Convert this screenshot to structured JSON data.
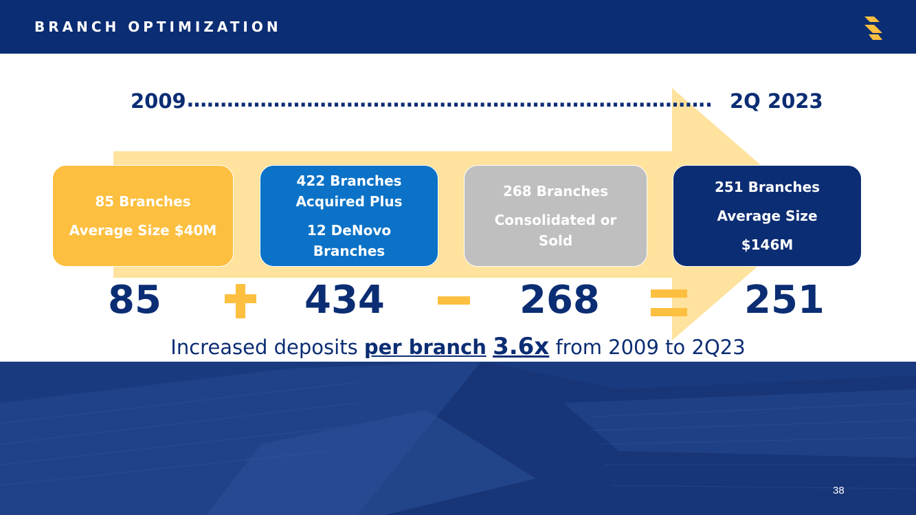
{
  "header": {
    "title": "BRANCH OPTIMIZATION"
  },
  "timeline": {
    "start": "2009",
    "dots": "…………………………………………………………………….",
    "end": "2Q 2023"
  },
  "boxes": [
    {
      "line1": "85 Branches",
      "line2": "Average Size $40M",
      "color": "#fdbf3f"
    },
    {
      "line1": "422 Branches Acquired Plus",
      "line2": "12 DeNovo Branches",
      "color": "#0b72c7"
    },
    {
      "line1": "268 Branches",
      "line2": "Consolidated or Sold",
      "color": "#bfbfbf"
    },
    {
      "line1": "251 Branches",
      "line2": "Average Size",
      "line3": "$146M",
      "color": "#0b2d73"
    }
  ],
  "equation": {
    "values": [
      "85",
      "434",
      "268",
      "251"
    ],
    "operators": [
      "plus",
      "minus",
      "equals"
    ]
  },
  "tagline": {
    "prefix": "Increased deposits ",
    "emphasis": "per branch",
    "multiplier": "3.6x",
    "suffix": " from 2009 to 2Q23"
  },
  "page_number": "38",
  "colors": {
    "navy": "#0b2d73",
    "gold": "#fdbf3f",
    "blue": "#0b72c7",
    "gray": "#bfbfbf",
    "arrow": "#fdd98a"
  }
}
